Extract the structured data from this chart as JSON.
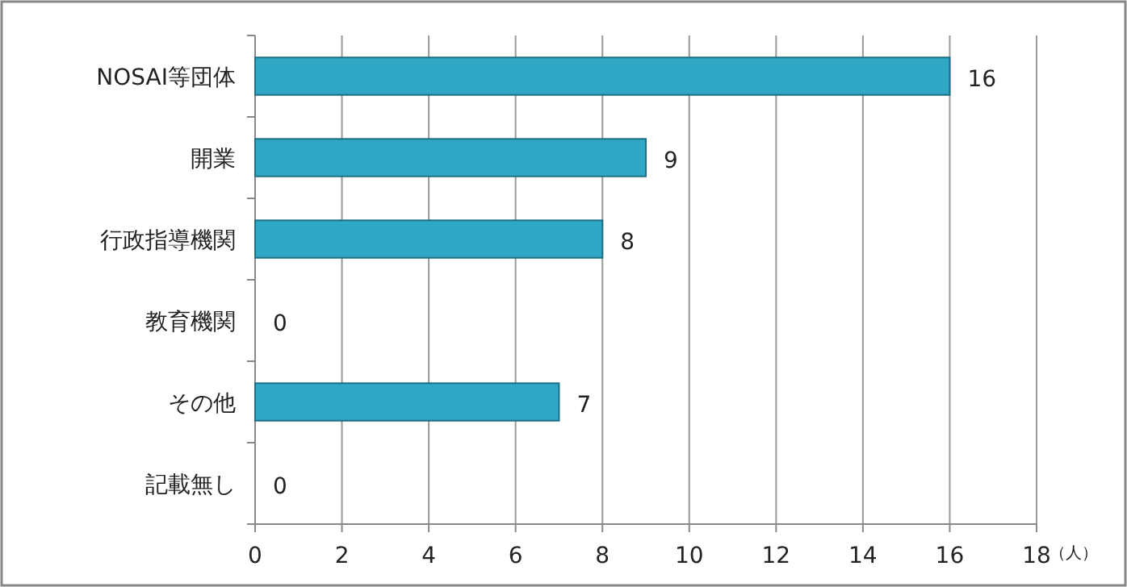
{
  "chart_data": {
    "type": "bar",
    "orientation": "horizontal",
    "categories": [
      "NOSAI等団体",
      "開業",
      "行政指導機関",
      "教育機関",
      "その他",
      "記載無し"
    ],
    "values": [
      16,
      9,
      8,
      0,
      7,
      0
    ],
    "color": "#31a7c6",
    "xlim": [
      0,
      18
    ],
    "xticks": [
      0,
      2,
      4,
      6,
      8,
      10,
      12,
      14,
      16,
      18
    ],
    "xlabel": "（人）",
    "grid": "x",
    "data_labels": true
  }
}
